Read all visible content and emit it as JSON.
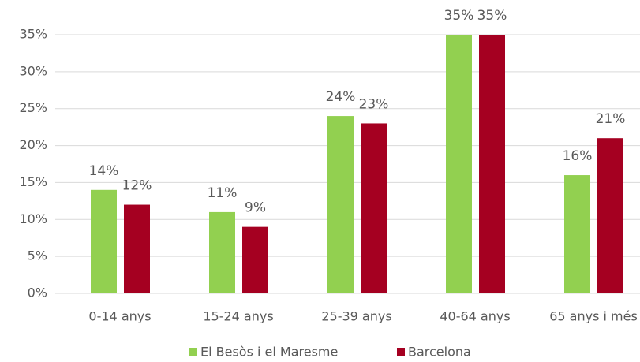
{
  "chart_data": {
    "type": "bar",
    "categories": [
      "0-14 anys",
      "15-24 anys",
      "25-39 anys",
      "40-64 anys",
      "65 anys i més"
    ],
    "series": [
      {
        "name": "El Besòs i el Maresme",
        "color": "#92d050",
        "values": [
          14,
          11,
          24,
          35,
          16
        ],
        "value_labels": [
          "14%",
          "11%",
          "24%",
          "35%",
          "16%"
        ]
      },
      {
        "name": "Barcelona",
        "color": "#a50021",
        "values": [
          12,
          9,
          23,
          35,
          21
        ],
        "value_labels": [
          "12%",
          "9%",
          "23%",
          "35%",
          "21%"
        ]
      }
    ],
    "ylim": [
      0,
      35
    ],
    "yticks": [
      {
        "value": 0,
        "label": "0%"
      },
      {
        "value": 5,
        "label": "5%"
      },
      {
        "value": 10,
        "label": "10%"
      },
      {
        "value": 15,
        "label": "15%"
      },
      {
        "value": 20,
        "label": "20%"
      },
      {
        "value": 25,
        "label": "25%"
      },
      {
        "value": 30,
        "label": "30%"
      },
      {
        "value": 35,
        "label": "35%"
      }
    ],
    "grid": true,
    "legend": "bottom"
  }
}
